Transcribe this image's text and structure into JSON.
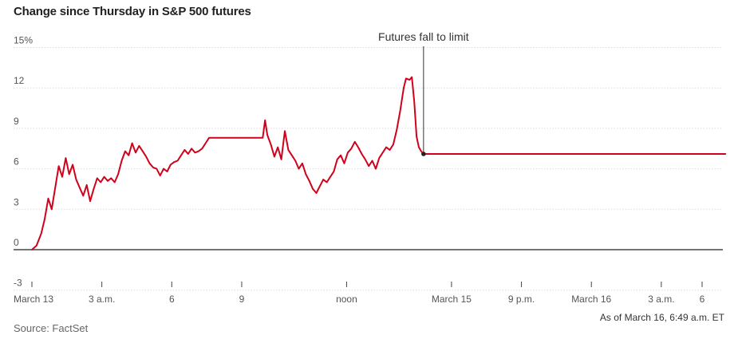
{
  "chart_data": {
    "type": "line",
    "title": "Change since Thursday in S&P 500 futures",
    "ylim": [
      -3,
      15
    ],
    "y_ticks": [
      {
        "value": 15,
        "label": "15%"
      },
      {
        "value": 12,
        "label": "12"
      },
      {
        "value": 9,
        "label": "9"
      },
      {
        "value": 6,
        "label": "6"
      },
      {
        "value": 3,
        "label": "3"
      },
      {
        "value": 0,
        "label": "0"
      },
      {
        "value": -3,
        "label": "-3"
      }
    ],
    "x_range_hours": [
      0,
      59.5
    ],
    "x_ticks": [
      {
        "hour": 0,
        "label": "March 13"
      },
      {
        "hour": 6,
        "label": "3 a.m."
      },
      {
        "hour": 12,
        "label": "6"
      },
      {
        "hour": 18,
        "label": "9"
      },
      {
        "hour": 27,
        "label": "noon"
      },
      {
        "hour": 36,
        "label": "March 15"
      },
      {
        "hour": 42,
        "label": "9 p.m."
      },
      {
        "hour": 48,
        "label": "March 16"
      },
      {
        "hour": 54,
        "label": "3 a.m."
      },
      {
        "hour": 57.5,
        "label": "6"
      }
    ],
    "series": [
      {
        "color": "#d0021b",
        "points": [
          [
            0.0,
            0.0
          ],
          [
            0.4,
            0.3
          ],
          [
            0.8,
            1.2
          ],
          [
            1.1,
            2.3
          ],
          [
            1.4,
            3.8
          ],
          [
            1.7,
            3.0
          ],
          [
            2.0,
            4.6
          ],
          [
            2.3,
            6.2
          ],
          [
            2.6,
            5.4
          ],
          [
            2.9,
            6.8
          ],
          [
            3.2,
            5.6
          ],
          [
            3.5,
            6.3
          ],
          [
            3.8,
            5.2
          ],
          [
            4.1,
            4.6
          ],
          [
            4.4,
            4.0
          ],
          [
            4.7,
            4.8
          ],
          [
            5.0,
            3.6
          ],
          [
            5.3,
            4.5
          ],
          [
            5.6,
            5.3
          ],
          [
            5.9,
            5.0
          ],
          [
            6.2,
            5.4
          ],
          [
            6.5,
            5.1
          ],
          [
            6.8,
            5.3
          ],
          [
            7.1,
            5.0
          ],
          [
            7.4,
            5.6
          ],
          [
            7.7,
            6.6
          ],
          [
            8.0,
            7.3
          ],
          [
            8.3,
            7.0
          ],
          [
            8.6,
            7.9
          ],
          [
            8.9,
            7.2
          ],
          [
            9.2,
            7.7
          ],
          [
            9.5,
            7.3
          ],
          [
            9.8,
            6.9
          ],
          [
            10.1,
            6.4
          ],
          [
            10.4,
            6.1
          ],
          [
            10.7,
            6.0
          ],
          [
            11.0,
            5.5
          ],
          [
            11.3,
            6.0
          ],
          [
            11.6,
            5.8
          ],
          [
            11.9,
            6.3
          ],
          [
            12.2,
            6.5
          ],
          [
            12.5,
            6.6
          ],
          [
            12.8,
            7.0
          ],
          [
            13.1,
            7.4
          ],
          [
            13.4,
            7.1
          ],
          [
            13.7,
            7.5
          ],
          [
            14.0,
            7.2
          ],
          [
            14.3,
            7.3
          ],
          [
            14.6,
            7.5
          ],
          [
            14.9,
            7.9
          ],
          [
            15.2,
            8.3
          ],
          [
            19.8,
            8.3
          ],
          [
            20.0,
            9.6
          ],
          [
            20.2,
            8.5
          ],
          [
            20.5,
            7.8
          ],
          [
            20.8,
            6.9
          ],
          [
            21.1,
            7.6
          ],
          [
            21.4,
            6.7
          ],
          [
            21.7,
            8.8
          ],
          [
            22.0,
            7.4
          ],
          [
            22.3,
            7.0
          ],
          [
            22.6,
            6.6
          ],
          [
            22.9,
            6.0
          ],
          [
            23.2,
            6.4
          ],
          [
            23.5,
            5.6
          ],
          [
            23.8,
            5.1
          ],
          [
            24.1,
            4.5
          ],
          [
            24.4,
            4.2
          ],
          [
            24.7,
            4.7
          ],
          [
            25.0,
            5.2
          ],
          [
            25.3,
            5.0
          ],
          [
            25.6,
            5.4
          ],
          [
            25.9,
            5.8
          ],
          [
            26.2,
            6.7
          ],
          [
            26.5,
            7.0
          ],
          [
            26.8,
            6.4
          ],
          [
            27.1,
            7.2
          ],
          [
            27.4,
            7.5
          ],
          [
            27.7,
            8.0
          ],
          [
            28.0,
            7.6
          ],
          [
            28.3,
            7.1
          ],
          [
            28.6,
            6.7
          ],
          [
            28.9,
            6.2
          ],
          [
            29.2,
            6.6
          ],
          [
            29.5,
            6.0
          ],
          [
            29.8,
            6.8
          ],
          [
            30.1,
            7.2
          ],
          [
            30.4,
            7.6
          ],
          [
            30.7,
            7.4
          ],
          [
            31.0,
            7.8
          ],
          [
            31.3,
            8.9
          ],
          [
            31.6,
            10.3
          ],
          [
            31.9,
            12.0
          ],
          [
            32.1,
            12.7
          ],
          [
            32.4,
            12.6
          ],
          [
            32.6,
            12.8
          ],
          [
            32.8,
            11.0
          ],
          [
            33.0,
            8.4
          ],
          [
            33.1,
            8.0
          ],
          [
            33.2,
            7.6
          ],
          [
            33.4,
            7.3
          ],
          [
            33.6,
            7.1
          ],
          [
            59.5,
            7.1
          ]
        ]
      }
    ],
    "limit_marker": {
      "hour": 33.6,
      "value": 7.1
    },
    "annotation": "Futures fall to limit",
    "grid": true,
    "legend": "none"
  },
  "source": "Source: FactSet",
  "as_of": "As of March 16, 6:49 a.m. ET"
}
